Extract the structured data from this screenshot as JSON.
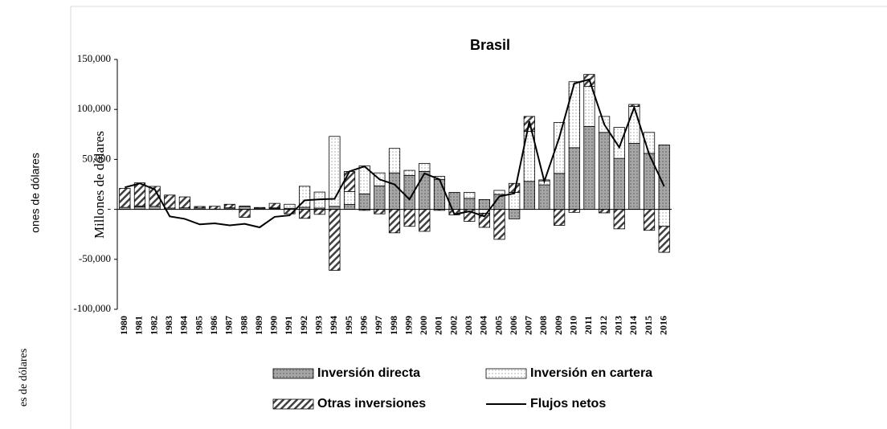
{
  "chart_data": {
    "type": "bar",
    "title": "Brasil",
    "y_label": "Millones de dólares",
    "side_labels": [
      "ones de dólares",
      "es de dólares"
    ],
    "categories": [
      "1980",
      "1981",
      "1982",
      "1983",
      "1984",
      "1985",
      "1986",
      "1987",
      "1988",
      "1989",
      "1990",
      "1991",
      "1992",
      "1993",
      "1994",
      "1995",
      "1996",
      "1997",
      "1998",
      "1999",
      "2000",
      "2001",
      "2002",
      "2003",
      "2004",
      "2005",
      "2006",
      "2007",
      "2008",
      "2009",
      "2010",
      "2011",
      "2012",
      "2013",
      "2014",
      "2015",
      "2016"
    ],
    "series": [
      {
        "name": "Inversión directa",
        "type": "bar",
        "color": "#a6a6a6",
        "values": [
          2000,
          2500,
          3000,
          1300,
          1500,
          1400,
          300,
          1200,
          2800,
          1100,
          1000,
          1100,
          2100,
          1300,
          3000,
          4900,
          15500,
          23500,
          36500,
          34000,
          38000,
          30000,
          17000,
          11000,
          9800,
          15000,
          -9500,
          28000,
          24500,
          36000,
          61700,
          83000,
          77000,
          51000,
          66000,
          56000,
          64500
        ]
      },
      {
        "name": "Inversión en cartera",
        "type": "bar",
        "color": "#ffffff",
        "values": [
          0,
          1000,
          0,
          0,
          0,
          0,
          0,
          400,
          500,
          0,
          500,
          4000,
          21000,
          16000,
          70000,
          13000,
          28000,
          13000,
          24500,
          5000,
          8000,
          3000,
          0,
          6000,
          -4000,
          4000,
          17000,
          50000,
          4000,
          51000,
          66000,
          40000,
          16000,
          31000,
          37000,
          21000,
          -17000
        ]
      },
      {
        "name": "Otras inversiones",
        "type": "bar",
        "color": "#404040",
        "values": [
          19000,
          23000,
          20000,
          13000,
          11000,
          1500,
          2800,
          3500,
          -8000,
          800,
          4500,
          -4500,
          -9000,
          -5000,
          -61000,
          20000,
          -1000,
          -4500,
          -23500,
          -17000,
          -22000,
          -1000,
          -5500,
          -12000,
          -14000,
          -30000,
          9000,
          15000,
          1000,
          -16000,
          -3000,
          12000,
          -3500,
          -19500,
          2000,
          -21000,
          -26000
        ]
      },
      {
        "name": "Flujos netos",
        "type": "line",
        "color": "#000000",
        "values": [
          22000,
          26000,
          20000,
          -7000,
          -9500,
          -15000,
          -14000,
          -16000,
          -14500,
          -18000,
          -7500,
          -6000,
          9000,
          10000,
          10500,
          38000,
          43000,
          30000,
          25000,
          10000,
          36000,
          30000,
          -5000,
          -2000,
          -7000,
          13000,
          16000,
          88000,
          28000,
          72000,
          126000,
          130000,
          85000,
          62000,
          102000,
          55000,
          23000
        ]
      }
    ],
    "ylim": [
      -100000,
      150000
    ],
    "yticks": [
      {
        "value": -100000,
        "label": "-100,000"
      },
      {
        "value": -50000,
        "label": "-50,000"
      },
      {
        "value": 0,
        "label": "-"
      },
      {
        "value": 50000,
        "label": "50,000"
      },
      {
        "value": 100000,
        "label": "100,000"
      },
      {
        "value": 150000,
        "label": "150,000"
      }
    ],
    "legend": "bottom"
  }
}
